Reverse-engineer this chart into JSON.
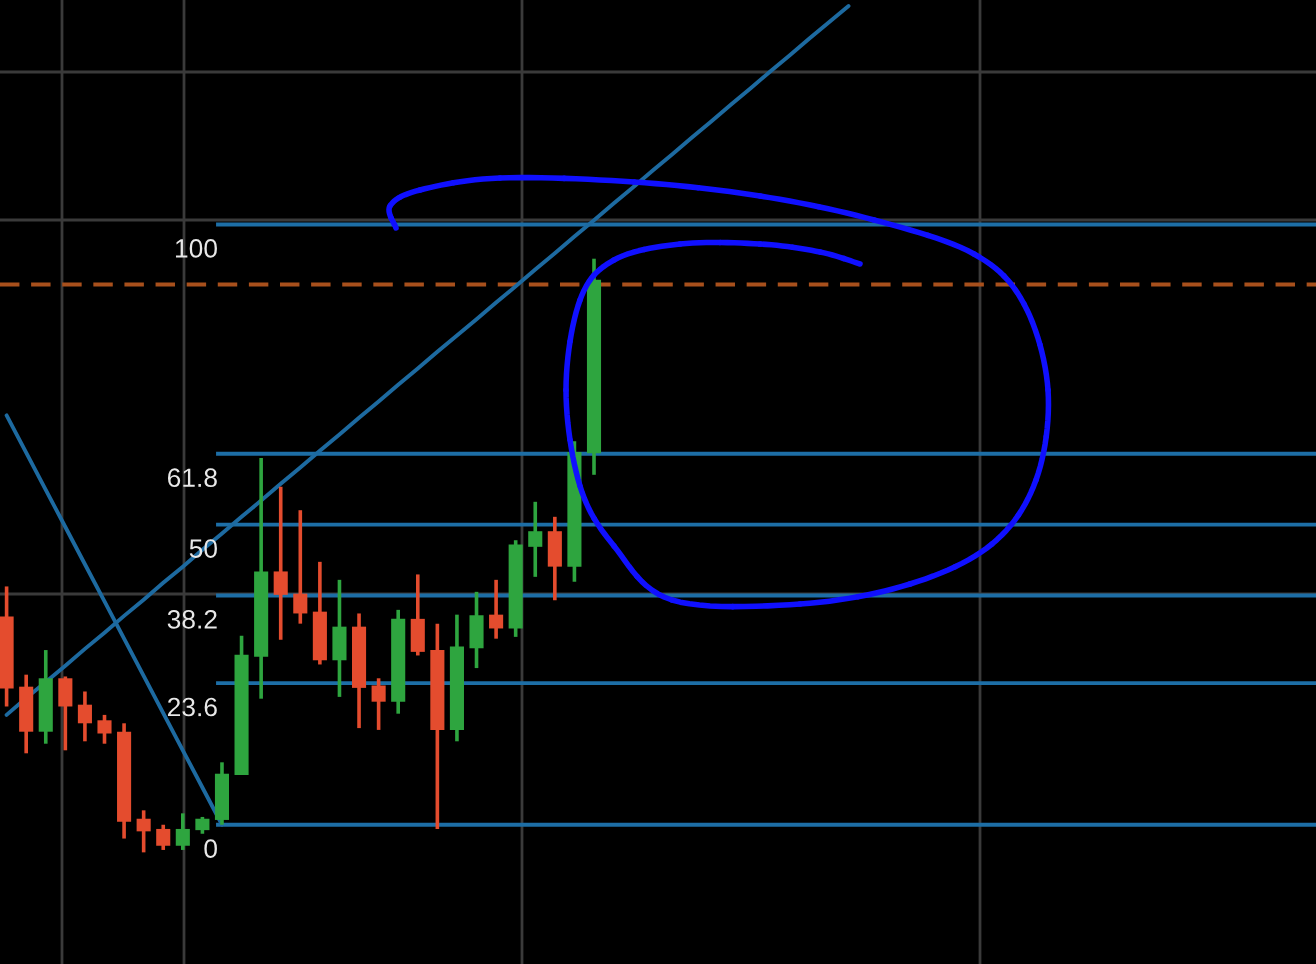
{
  "chart_data": {
    "type": "candlestick",
    "categories": [
      null,
      null,
      null,
      null,
      null,
      null,
      null,
      null,
      null,
      null,
      null,
      null,
      null,
      null,
      null,
      null,
      null,
      null,
      null,
      null,
      null,
      null,
      null,
      null,
      null,
      null,
      null,
      null,
      null,
      null,
      null,
      null,
      null,
      null,
      null,
      null,
      null,
      null,
      null,
      null,
      null,
      null,
      null,
      null,
      null,
      null,
      null,
      null,
      null,
      null,
      null,
      null,
      null,
      null,
      null,
      null,
      null,
      null,
      null,
      null,
      null,
      null,
      null,
      null,
      null,
      null,
      null
    ],
    "ohlc": [
      [
        34.7,
        39.7,
        19.7,
        22.7
      ],
      [
        23.0,
        25.0,
        11.9,
        15.5
      ],
      [
        15.5,
        29.1,
        13.5,
        24.4
      ],
      [
        24.4,
        24.7,
        12.4,
        19.7
      ],
      [
        20.0,
        22.2,
        13.9,
        16.9
      ],
      [
        17.4,
        18.3,
        13.5,
        15.2
      ],
      [
        15.5,
        16.9,
        -2.3,
        0.5
      ],
      [
        1.0,
        2.4,
        -4.6,
        -1.1
      ],
      [
        -0.7,
        0.0,
        -4.2,
        -3.5
      ],
      [
        -3.5,
        1.9,
        -4.2,
        -0.7
      ],
      [
        -0.9,
        1.3,
        -1.5,
        1.0
      ],
      [
        0.8,
        10.4,
        0.0,
        8.5
      ],
      [
        8.3,
        31.5,
        8.3,
        28.3
      ],
      [
        28.0,
        61.1,
        21.0,
        42.2
      ],
      [
        42.2,
        56.3,
        30.8,
        38.3
      ],
      [
        38.5,
        52.4,
        33.5,
        35.2
      ],
      [
        35.5,
        43.8,
        26.7,
        27.4
      ],
      [
        27.4,
        40.8,
        21.3,
        33.0
      ],
      [
        33.0,
        35.2,
        16.1,
        22.8
      ],
      [
        23.2,
        24.4,
        15.8,
        20.5
      ],
      [
        20.5,
        35.8,
        18.5,
        34.3
      ],
      [
        34.3,
        41.7,
        28.2,
        28.8
      ],
      [
        29.1,
        33.5,
        -0.7,
        15.8
      ],
      [
        15.8,
        35.0,
        13.9,
        29.7
      ],
      [
        29.4,
        38.8,
        26.1,
        34.9
      ],
      [
        35.0,
        40.8,
        31.0,
        32.7
      ],
      [
        32.7,
        47.4,
        31.3,
        46.7
      ],
      [
        46.3,
        53.8,
        41.3,
        48.9
      ],
      [
        48.9,
        51.3,
        37.4,
        43.0
      ],
      [
        43.0,
        63.9,
        40.5,
        62.1
      ],
      [
        61.9,
        94.3,
        58.3,
        90.8
      ],
      null,
      null,
      null,
      null,
      null,
      null,
      null,
      null,
      null,
      null,
      null,
      null,
      null,
      null,
      null,
      null,
      null,
      null,
      null,
      null,
      null,
      null,
      null,
      null,
      null,
      null,
      null,
      null,
      null,
      null,
      null,
      null,
      null,
      null,
      null,
      null
    ],
    "colors": [
      "#e44c2e",
      "#e44c2e",
      "#2ea53f",
      "#e44c2e",
      "#e44c2e",
      "#e44c2e",
      "#e44c2e",
      "#e44c2e",
      "#e44c2e",
      "#2ea53f",
      "#2ea53f",
      "#2ea53f",
      "#2ea53f",
      "#2ea53f",
      "#e44c2e",
      "#e44c2e",
      "#e44c2e",
      "#2ea53f",
      "#e44c2e",
      "#e44c2e",
      "#2ea53f",
      "#e44c2e",
      "#e44c2e",
      "#2ea53f",
      "#2ea53f",
      "#e44c2e",
      "#2ea53f",
      "#2ea53f",
      "#e44c2e",
      "#2ea53f",
      "#2ea53f",
      null,
      null,
      null,
      null,
      null,
      null,
      null,
      null,
      null,
      null,
      null,
      null,
      null,
      null,
      null,
      null,
      null,
      null,
      null,
      null,
      null,
      null,
      null,
      null,
      null,
      null,
      null,
      null,
      null,
      null,
      null,
      null,
      null,
      null,
      null,
      null
    ],
    "series": [
      {
        "type": "line",
        "color": "#1d6aa0",
        "values": [
          18.3,
          21.1,
          23.8,
          26.5,
          29.3,
          32.0,
          34.8,
          37.5,
          40.3,
          43.0,
          45.8,
          48.5,
          51.3,
          54.0,
          56.8,
          59.5,
          62.3,
          65.0,
          67.8,
          70.5,
          73.3,
          76.0,
          78.8,
          81.5,
          84.2,
          87.0,
          89.7,
          92.5,
          95.2,
          98.0,
          100.7,
          103.5,
          106.2,
          109.0,
          111.7,
          114.5,
          117.2,
          120.0,
          122.7,
          125.5,
          128.2,
          131.0,
          133.7,
          136.4,
          null,
          null,
          null,
          null,
          null,
          null,
          null,
          null,
          null,
          null,
          null,
          null,
          null,
          null,
          null,
          null,
          null,
          null,
          null,
          null,
          null,
          null,
          null
        ]
      },
      {
        "type": "line",
        "color": "#1d6aa0",
        "values": [
          68.2,
          62.0,
          55.8,
          49.6,
          43.4,
          37.2,
          31.0,
          24.8,
          18.6,
          12.4,
          6.2,
          0.0,
          null,
          null,
          null,
          null,
          null,
          null,
          null,
          null,
          null,
          null,
          null,
          null,
          null,
          null,
          null,
          null,
          null,
          null,
          null,
          null,
          null,
          null,
          null,
          null,
          null,
          null,
          null,
          null,
          null,
          null,
          null,
          null,
          null,
          null,
          null,
          null,
          null,
          null,
          null,
          null,
          null,
          null,
          null,
          null,
          null,
          null,
          null,
          null,
          null,
          null,
          null,
          null,
          null,
          null,
          null
        ]
      }
    ],
    "ref_lines": [
      {
        "axis": "y",
        "value": 0,
        "label": "0",
        "color": "#1d6ea6"
      },
      {
        "axis": "y",
        "value": 23.6,
        "label": "23.6",
        "color": "#1d6ea6"
      },
      {
        "axis": "y",
        "value": 38.2,
        "label": "38.2",
        "color": "#1d6ea6"
      },
      {
        "axis": "y",
        "value": 50,
        "label": "50",
        "color": "#1d6ea6"
      },
      {
        "axis": "y",
        "value": 61.8,
        "label": "61.8",
        "color": "#1d6ea6"
      },
      {
        "axis": "y",
        "value": 100,
        "label": "100",
        "color": "#1d6ea6"
      },
      {
        "axis": "y",
        "value": 90,
        "color": "#a8501c",
        "line_style": "dashed"
      }
    ],
    "ylim": [
      -23.2,
      137.4
    ],
    "tick_labels": false
  }
}
